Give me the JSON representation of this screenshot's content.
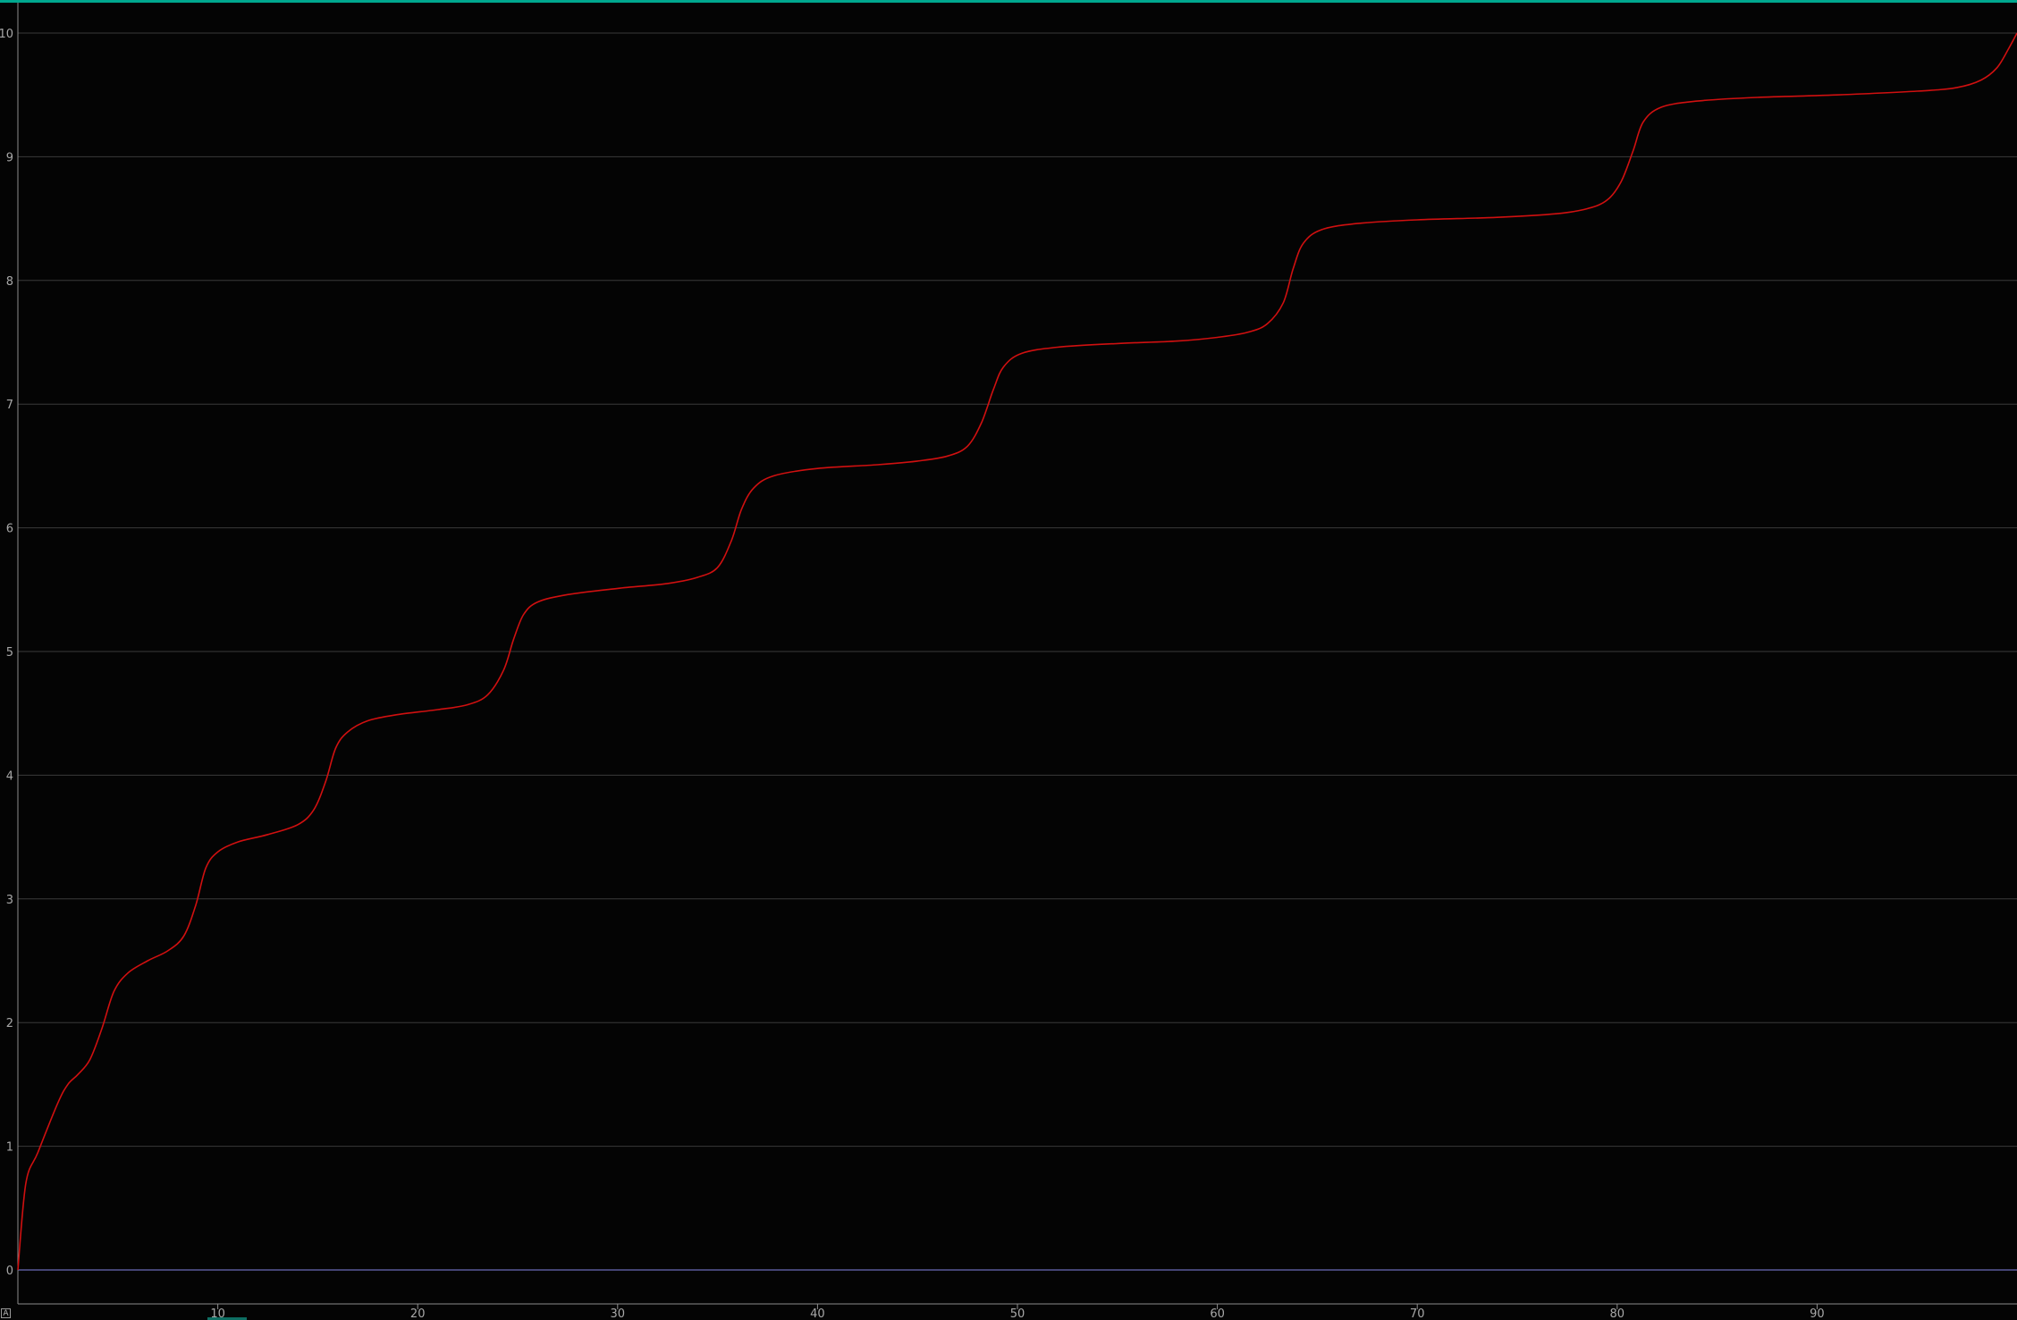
{
  "colors": {
    "background": "#040404",
    "accent_bar": "#00a88f",
    "grid": "#3a3a3a",
    "axis": "#8c8c8c",
    "tick_text": "#a8a8a8",
    "zero_line": "#6a6ab8",
    "series": "#d01010",
    "cursor_marker": "#0e6e62"
  },
  "corner_badge": "A",
  "chart_data": {
    "type": "line",
    "title": "",
    "xlabel": "",
    "ylabel": "",
    "xlim": [
      0,
      100
    ],
    "ylim": [
      0,
      10
    ],
    "x_ticks": [
      10,
      20,
      30,
      40,
      50,
      60,
      70,
      80,
      90
    ],
    "y_ticks": [
      0,
      1,
      2,
      3,
      4,
      5,
      6,
      7,
      8,
      9,
      10
    ],
    "grid": true,
    "legend": "none",
    "series": [
      {
        "color": "#d01010",
        "points": [
          [
            0,
            0
          ],
          [
            0.4,
            0.7
          ],
          [
            1,
            0.95
          ],
          [
            2,
            1.35
          ],
          [
            2.5,
            1.5
          ],
          [
            3,
            1.58
          ],
          [
            3.6,
            1.7
          ],
          [
            4.2,
            1.95
          ],
          [
            4.8,
            2.25
          ],
          [
            5.5,
            2.4
          ],
          [
            6.5,
            2.5
          ],
          [
            7.5,
            2.58
          ],
          [
            8.3,
            2.7
          ],
          [
            8.9,
            2.95
          ],
          [
            9.4,
            3.25
          ],
          [
            10,
            3.38
          ],
          [
            11,
            3.46
          ],
          [
            12.5,
            3.52
          ],
          [
            14,
            3.6
          ],
          [
            14.8,
            3.72
          ],
          [
            15.4,
            3.95
          ],
          [
            15.9,
            4.22
          ],
          [
            16.5,
            4.35
          ],
          [
            17.5,
            4.44
          ],
          [
            19,
            4.49
          ],
          [
            21,
            4.53
          ],
          [
            22.5,
            4.57
          ],
          [
            23.5,
            4.65
          ],
          [
            24.3,
            4.85
          ],
          [
            24.8,
            5.1
          ],
          [
            25.3,
            5.3
          ],
          [
            26,
            5.4
          ],
          [
            27.5,
            5.46
          ],
          [
            30,
            5.51
          ],
          [
            32.5,
            5.55
          ],
          [
            34,
            5.6
          ],
          [
            35,
            5.68
          ],
          [
            35.7,
            5.9
          ],
          [
            36.2,
            6.15
          ],
          [
            36.8,
            6.32
          ],
          [
            37.8,
            6.42
          ],
          [
            40,
            6.48
          ],
          [
            43,
            6.51
          ],
          [
            45,
            6.54
          ],
          [
            46.5,
            6.58
          ],
          [
            47.5,
            6.66
          ],
          [
            48.2,
            6.85
          ],
          [
            48.8,
            7.12
          ],
          [
            49.3,
            7.3
          ],
          [
            50.2,
            7.41
          ],
          [
            52,
            7.46
          ],
          [
            55,
            7.49
          ],
          [
            58,
            7.51
          ],
          [
            60,
            7.54
          ],
          [
            61.5,
            7.58
          ],
          [
            62.5,
            7.65
          ],
          [
            63.3,
            7.82
          ],
          [
            63.8,
            8.1
          ],
          [
            64.3,
            8.3
          ],
          [
            65.2,
            8.41
          ],
          [
            67,
            8.46
          ],
          [
            70,
            8.49
          ],
          [
            74,
            8.51
          ],
          [
            77,
            8.54
          ],
          [
            78.5,
            8.58
          ],
          [
            79.5,
            8.65
          ],
          [
            80.2,
            8.8
          ],
          [
            80.8,
            9.05
          ],
          [
            81.3,
            9.28
          ],
          [
            82.2,
            9.4
          ],
          [
            84,
            9.45
          ],
          [
            87,
            9.48
          ],
          [
            91,
            9.5
          ],
          [
            95,
            9.53
          ],
          [
            97,
            9.56
          ],
          [
            98.2,
            9.62
          ],
          [
            99,
            9.72
          ],
          [
            99.6,
            9.88
          ],
          [
            100,
            10
          ]
        ]
      }
    ]
  }
}
